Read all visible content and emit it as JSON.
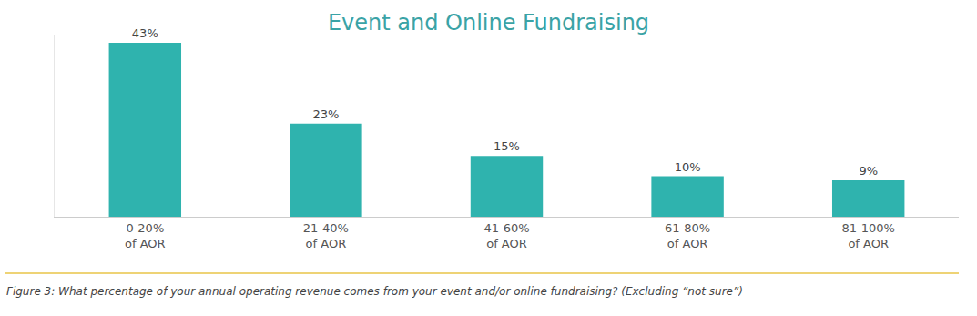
{
  "chart_data": {
    "type": "bar",
    "title": "Event and Online Fundraising",
    "caption": "Figure 3: What percentage of your annual operating revenue comes from your event and/or online fundraising? (Excluding “not sure”)",
    "categories": [
      "0-20%\nof AOR",
      "21-40%\nof AOR",
      "41-60%\nof AOR",
      "61-80%\nof AOR",
      "81-100%\nof AOR"
    ],
    "values": [
      43,
      23,
      15,
      10,
      9
    ],
    "value_labels": [
      "43%",
      "23%",
      "15%",
      "10%",
      "9%"
    ],
    "data_labels": true,
    "color": "#2fb3ae",
    "ylim": [
      0,
      45
    ],
    "yticks": [],
    "tick_labels": "x",
    "grid": false
  }
}
